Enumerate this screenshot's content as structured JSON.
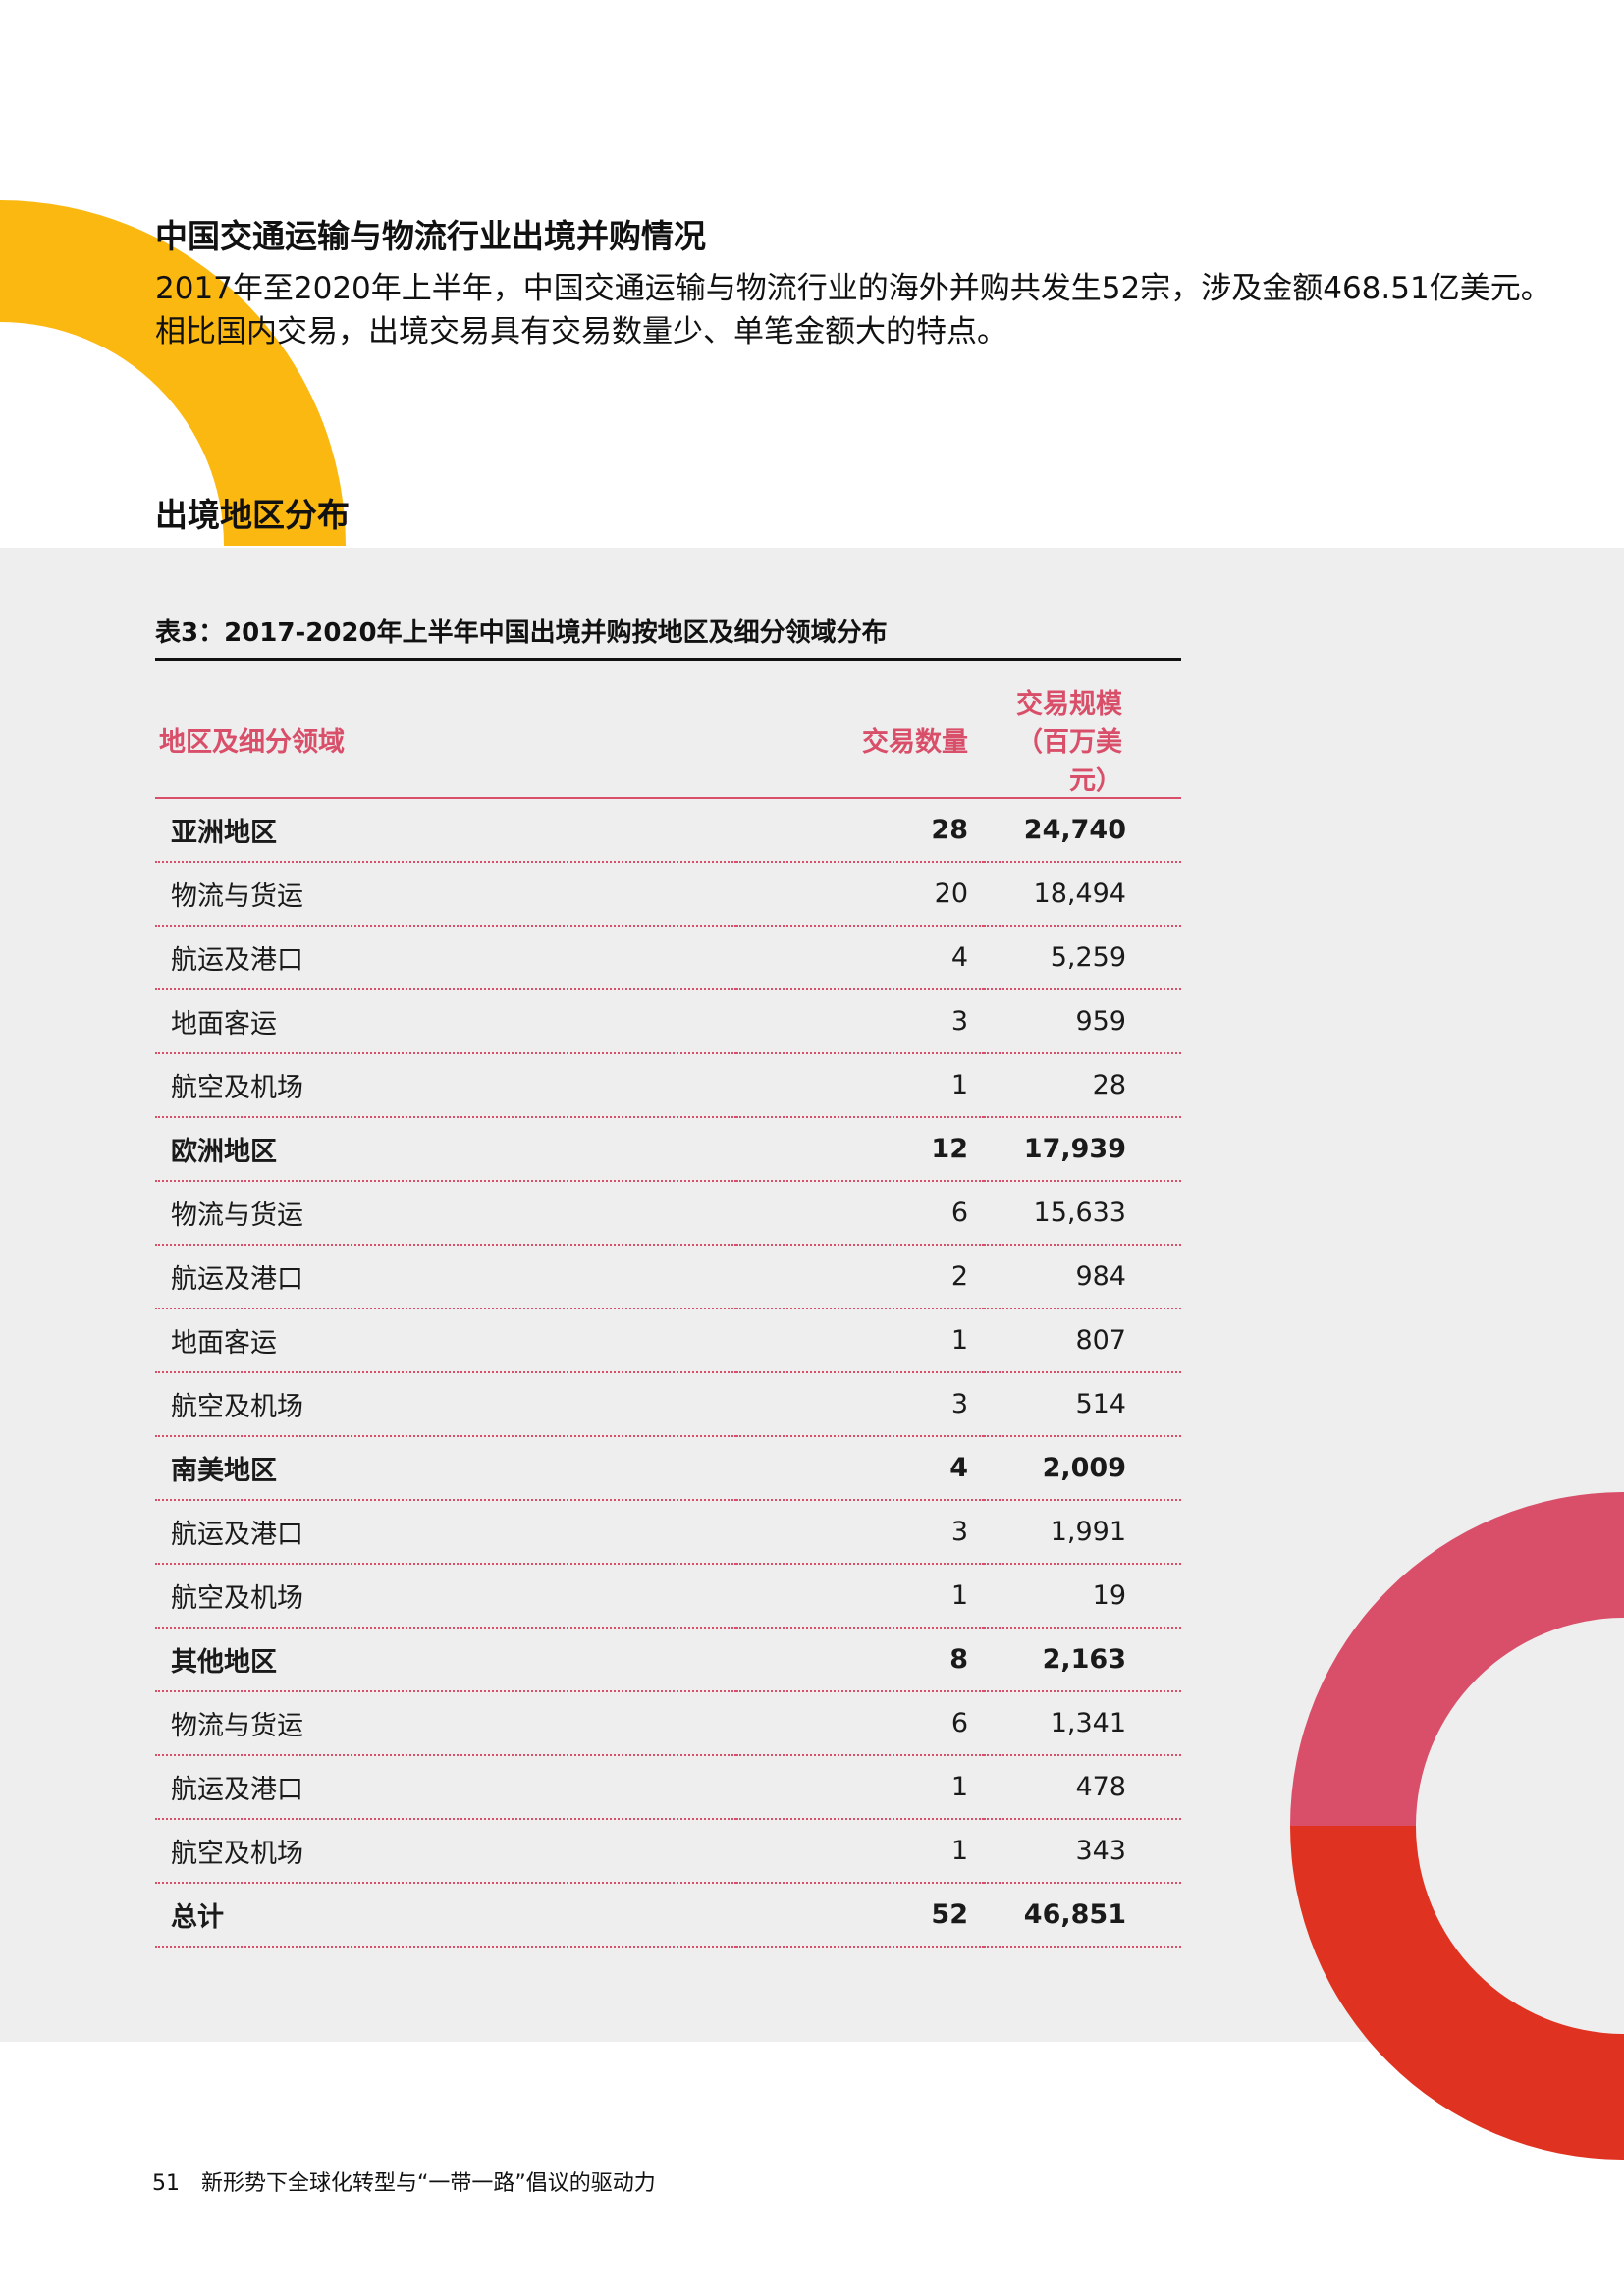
{
  "section": {
    "title": "中国交通运输与物流行业出境并购情况",
    "intro_line1": "2017年至2020年上半年，中国交通运输与物流行业的海外并购共发生52宗，涉及金额468.51亿美元。",
    "intro_line2": "相比国内交易，出境交易具有交易数量少、单笔金额大的特点。"
  },
  "subsection": {
    "title": "出境地区分布"
  },
  "table": {
    "caption": "表3：2017-2020年上半年中国出境并购按地区及细分领域分布",
    "headers": [
      "地区及细分领域",
      "交易数量",
      "交易规模（百万美元）"
    ],
    "rows": [
      [
        "亚洲地区",
        "28",
        "24,740"
      ],
      [
        "物流与货运",
        "20",
        "18,494"
      ],
      [
        "航运及港口",
        "4",
        "5,259"
      ],
      [
        "地面客运",
        "3",
        "959"
      ],
      [
        "航空及机场",
        "1",
        "28"
      ],
      [
        "欧洲地区",
        "12",
        "17,939"
      ],
      [
        "物流与货运",
        "6",
        "15,633"
      ],
      [
        "航运及港口",
        "2",
        "984"
      ],
      [
        "地面客运",
        "1",
        "807"
      ],
      [
        "航空及机场",
        "3",
        "514"
      ],
      [
        "南美地区",
        "4",
        "2,009"
      ],
      [
        "航运及港口",
        "3",
        "1,991"
      ],
      [
        "航空及机场",
        "1",
        "19"
      ],
      [
        "其他地区",
        "8",
        "2,163"
      ],
      [
        "物流与货运",
        "6",
        "1,341"
      ],
      [
        "航运及港口",
        "1",
        "478"
      ],
      [
        "航空及机场",
        "1",
        "343"
      ],
      [
        "总计",
        "52",
        "46,851"
      ]
    ]
  },
  "footer": {
    "page_number": "51",
    "title": "新形势下全球化转型与“一带一路”倡议的驱动力"
  },
  "colors": {
    "yellow": "#fbb811",
    "pink": "#d94f6a",
    "red": "#e03221",
    "band": "#eeeeee"
  }
}
